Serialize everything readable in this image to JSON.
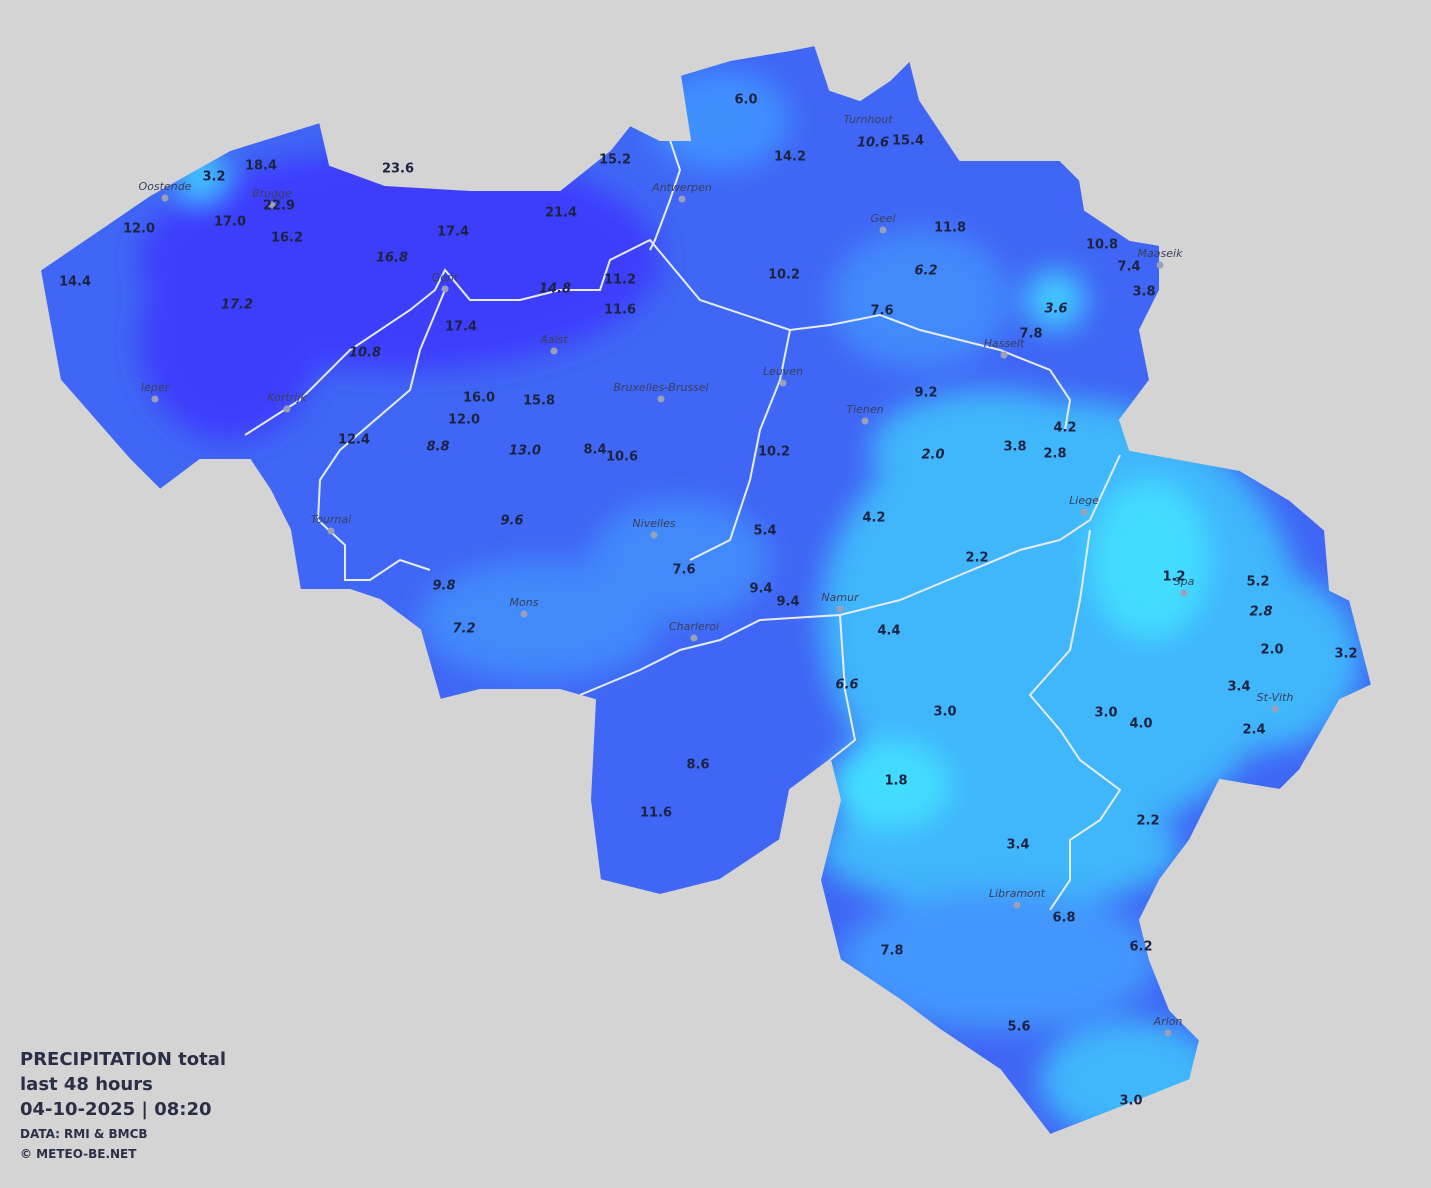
{
  "legend": {
    "title": [
      "PRECIPITATION total",
      "last 48 hours",
      "04-10-2025  |  08:20"
    ],
    "credits": [
      "DATA: RMI & BMCB",
      "© METEO-BE.NET"
    ]
  },
  "cities": [
    "Oostende",
    "Brugge",
    "Gent",
    "Antwerpen",
    "Turnhout",
    "Geel",
    "Maaseik",
    "Hasselt",
    "Ieper",
    "Kortrijk",
    "Aalst",
    "Bruxelles-Brussel",
    "Leuven",
    "Tienen",
    "Liege",
    "Tournai",
    "Nivelles",
    "Spa",
    "Mons",
    "Charleroi",
    "Namur",
    "St-Vith",
    "Libramont",
    "Arlon"
  ],
  "stations": [
    {
      "value": "6.0"
    },
    {
      "value": "14.2"
    },
    {
      "value": "10.6",
      "italic": true
    },
    {
      "value": "15.4"
    },
    {
      "value": "15.2"
    },
    {
      "value": "18.4"
    },
    {
      "value": "3.2"
    },
    {
      "value": "23.6"
    },
    {
      "value": "22.9"
    },
    {
      "value": "17.0"
    },
    {
      "value": "16.2"
    },
    {
      "value": "12.0"
    },
    {
      "value": "21.4"
    },
    {
      "value": "17.4"
    },
    {
      "value": "11.8"
    },
    {
      "value": "10.8"
    },
    {
      "value": "7.4"
    },
    {
      "value": "3.8"
    },
    {
      "value": "14.4"
    },
    {
      "value": "16.8",
      "italic": true
    },
    {
      "value": "10.2"
    },
    {
      "value": "6.2",
      "italic": true
    },
    {
      "value": "11.2"
    },
    {
      "value": "14.8",
      "italic": true
    },
    {
      "value": "17.2",
      "italic": true
    },
    {
      "value": "11.6"
    },
    {
      "value": "7.6"
    },
    {
      "value": "3.6",
      "italic": true
    },
    {
      "value": "17.4"
    },
    {
      "value": "7.8"
    },
    {
      "value": "10.8",
      "italic": true
    },
    {
      "value": "9.2"
    },
    {
      "value": "16.0"
    },
    {
      "value": "15.8"
    },
    {
      "value": "12.0"
    },
    {
      "value": "4.2"
    },
    {
      "value": "12.4"
    },
    {
      "value": "8.8",
      "italic": true
    },
    {
      "value": "13.0",
      "italic": true
    },
    {
      "value": "8.4"
    },
    {
      "value": "10.6"
    },
    {
      "value": "10.2"
    },
    {
      "value": "3.8"
    },
    {
      "value": "2.8"
    },
    {
      "value": "2.0",
      "italic": true
    },
    {
      "value": "4.2"
    },
    {
      "value": "9.6",
      "italic": true
    },
    {
      "value": "5.4"
    },
    {
      "value": "2.2"
    },
    {
      "value": "7.6"
    },
    {
      "value": "1.2"
    },
    {
      "value": "5.2"
    },
    {
      "value": "9.4"
    },
    {
      "value": "9.8",
      "italic": true
    },
    {
      "value": "9.4"
    },
    {
      "value": "2.8",
      "italic": true
    },
    {
      "value": "7.2",
      "italic": true
    },
    {
      "value": "4.4"
    },
    {
      "value": "2.0"
    },
    {
      "value": "3.2"
    },
    {
      "value": "6.6",
      "italic": true
    },
    {
      "value": "3.4"
    },
    {
      "value": "3.0"
    },
    {
      "value": "3.0"
    },
    {
      "value": "4.0"
    },
    {
      "value": "2.4"
    },
    {
      "value": "8.6"
    },
    {
      "value": "1.8"
    },
    {
      "value": "11.6"
    },
    {
      "value": "2.2"
    },
    {
      "value": "3.4"
    },
    {
      "value": "6.8"
    },
    {
      "value": "6.2"
    },
    {
      "value": "7.8"
    },
    {
      "value": "5.6"
    },
    {
      "value": "3.0"
    }
  ]
}
